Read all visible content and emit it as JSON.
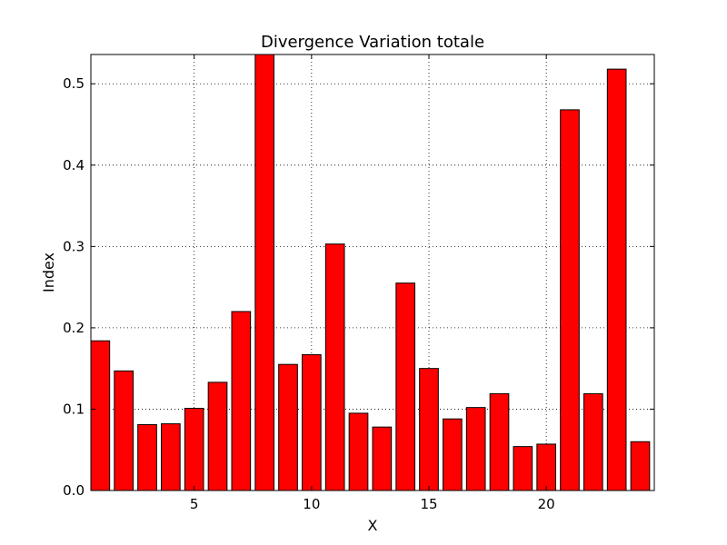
{
  "chart_data": {
    "type": "bar",
    "title": "Divergence Variation totale",
    "xlabel": "X",
    "ylabel": "Index",
    "x": [
      1,
      2,
      3,
      4,
      5,
      6,
      7,
      8,
      9,
      10,
      11,
      12,
      13,
      14,
      15,
      16,
      17,
      18,
      19,
      20,
      21,
      22,
      23,
      24
    ],
    "values": [
      0.184,
      0.147,
      0.081,
      0.082,
      0.101,
      0.133,
      0.22,
      0.536,
      0.155,
      0.167,
      0.303,
      0.095,
      0.078,
      0.255,
      0.15,
      0.088,
      0.102,
      0.119,
      0.054,
      0.057,
      0.468,
      0.119,
      0.518,
      0.06
    ],
    "xlim": [
      0.6,
      24.6
    ],
    "ylim": [
      0.0,
      0.536
    ],
    "xticks": [
      5,
      10,
      15,
      20
    ],
    "xtick_labels": [
      "5",
      "10",
      "15",
      "20"
    ],
    "yticks": [
      0.0,
      0.1,
      0.2,
      0.3,
      0.4,
      0.5
    ],
    "ytick_labels": [
      "0.0",
      "0.1",
      "0.2",
      "0.3",
      "0.4",
      "0.5"
    ],
    "grid": true,
    "colors": {
      "bar": "#ff0000",
      "edge": "#000000"
    }
  }
}
